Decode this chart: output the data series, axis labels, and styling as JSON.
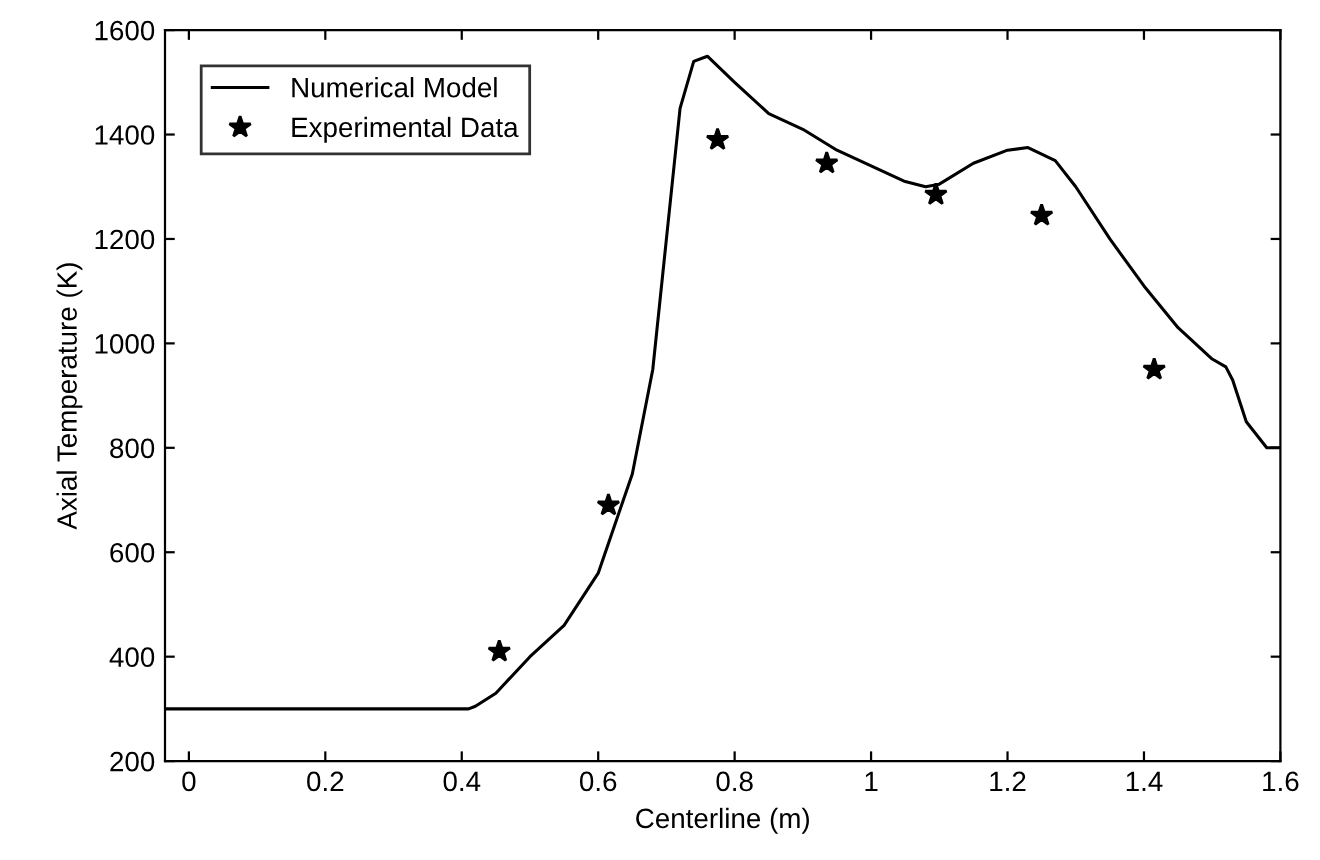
{
  "chart_data": {
    "type": "line",
    "xlabel": "Centerline (m)",
    "ylabel": "Axial Temperature (K)",
    "xlim": [
      -0.035,
      1.6
    ],
    "xticks": [
      0,
      0.2,
      0.4,
      0.6,
      0.8,
      1,
      1.2,
      1.4,
      1.6
    ],
    "ylim": [
      200,
      1600
    ],
    "yticks": [
      200,
      400,
      600,
      800,
      1000,
      1200,
      1400,
      1600
    ],
    "grid": false,
    "legend": "top left",
    "series": [
      {
        "name": "Numerical Model",
        "color": "#000000",
        "line_style": "solid",
        "marker": "none",
        "x": [
          -0.035,
          0.2,
          0.41,
          0.42,
          0.45,
          0.5,
          0.55,
          0.6,
          0.65,
          0.68,
          0.7,
          0.72,
          0.74,
          0.76,
          0.8,
          0.85,
          0.9,
          0.95,
          1.0,
          1.05,
          1.08,
          1.1,
          1.15,
          1.2,
          1.23,
          1.27,
          1.3,
          1.35,
          1.4,
          1.45,
          1.5,
          1.52,
          1.53,
          1.55,
          1.58,
          1.6
        ],
        "values": [
          300,
          300,
          300,
          305,
          330,
          400,
          460,
          560,
          750,
          950,
          1200,
          1450,
          1540,
          1550,
          1500,
          1440,
          1410,
          1370,
          1340,
          1310,
          1300,
          1305,
          1345,
          1370,
          1375,
          1350,
          1300,
          1200,
          1110,
          1030,
          970,
          955,
          930,
          850,
          800,
          800
        ]
      },
      {
        "name": "Experimental Data",
        "type": "scatter",
        "color": "#000000",
        "marker": "star",
        "x": [
          0.455,
          0.615,
          0.775,
          0.935,
          1.095,
          1.25,
          1.415
        ],
        "values": [
          410,
          690,
          1390,
          1345,
          1285,
          1245,
          950
        ]
      }
    ]
  }
}
